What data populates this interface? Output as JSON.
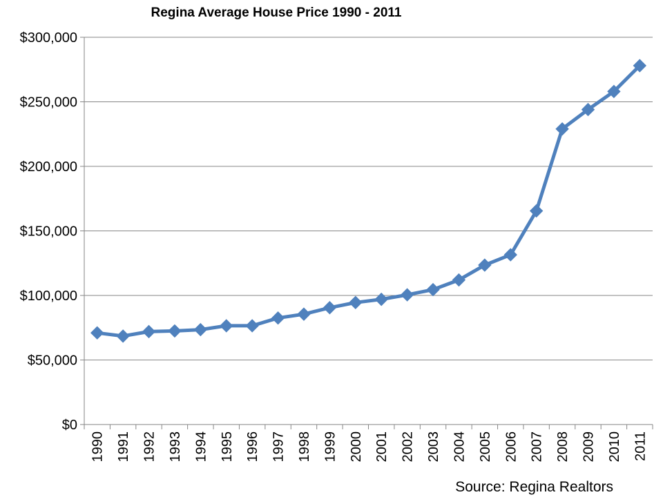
{
  "chart_data": {
    "type": "line",
    "title": "Regina Average House Price 1990 - 2011",
    "xlabel": "",
    "ylabel": "",
    "ylim": [
      0,
      300000
    ],
    "yticks": [
      "$0",
      "$50,000",
      "$100,000",
      "$150,000",
      "$200,000",
      "$250,000",
      "$300,000"
    ],
    "grid": true,
    "legend": "none",
    "series_color": "#4F81BD",
    "categories": [
      "1990",
      "1991",
      "1992",
      "1993",
      "1994",
      "1995",
      "1996",
      "1997",
      "1998",
      "1999",
      "2000",
      "2001",
      "2002",
      "2003",
      "2004",
      "2005",
      "2006",
      "2007",
      "2008",
      "2009",
      "2010",
      "2011"
    ],
    "series": [
      {
        "values": [
          71000,
          68500,
          72000,
          72500,
          73500,
          76500,
          76500,
          82500,
          85500,
          90500,
          94500,
          97000,
          100500,
          104500,
          112000,
          123500,
          131500,
          165500,
          229000,
          244000,
          258000,
          278000
        ]
      }
    ]
  },
  "source_text": "Source: Regina Realtors"
}
